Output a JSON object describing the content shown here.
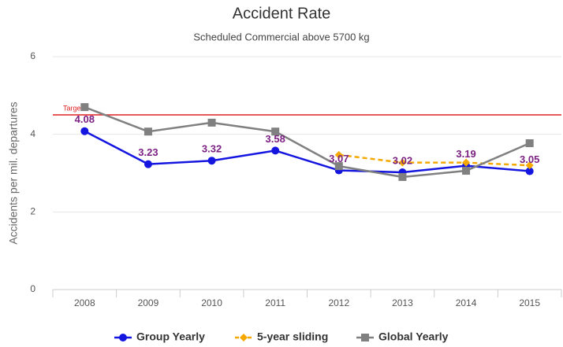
{
  "chart_data": {
    "type": "line",
    "title": "Accident Rate",
    "subtitle": "Scheduled Commercial above 5700 kg",
    "y_label": "Accidents per mil. departures",
    "categories": [
      "2008",
      "2009",
      "2010",
      "2011",
      "2012",
      "2013",
      "2014",
      "2015"
    ],
    "series": [
      {
        "name": "Group Yearly",
        "color": "#1515e0",
        "marker": "circle",
        "data_labels": true,
        "label_color": "#7b2182",
        "values": [
          4.08,
          3.23,
          3.32,
          3.58,
          3.07,
          3.02,
          3.19,
          3.05
        ]
      },
      {
        "name": "5-year sliding",
        "color": "#f5a800",
        "marker": "diamond",
        "dashed": true,
        "values": [
          null,
          null,
          null,
          null,
          3.47,
          3.27,
          3.27,
          3.2
        ]
      },
      {
        "name": "Global Yearly",
        "color": "#808080",
        "marker": "square",
        "values": [
          4.7,
          4.07,
          4.3,
          4.07,
          3.18,
          2.9,
          3.06,
          3.77
        ]
      }
    ],
    "target": {
      "label": "Target",
      "value": 4.5,
      "color": "#e02020"
    },
    "ylim": [
      0,
      6
    ],
    "yticks": [
      0,
      2,
      4,
      6
    ],
    "grid": true,
    "legend": "bottom"
  }
}
